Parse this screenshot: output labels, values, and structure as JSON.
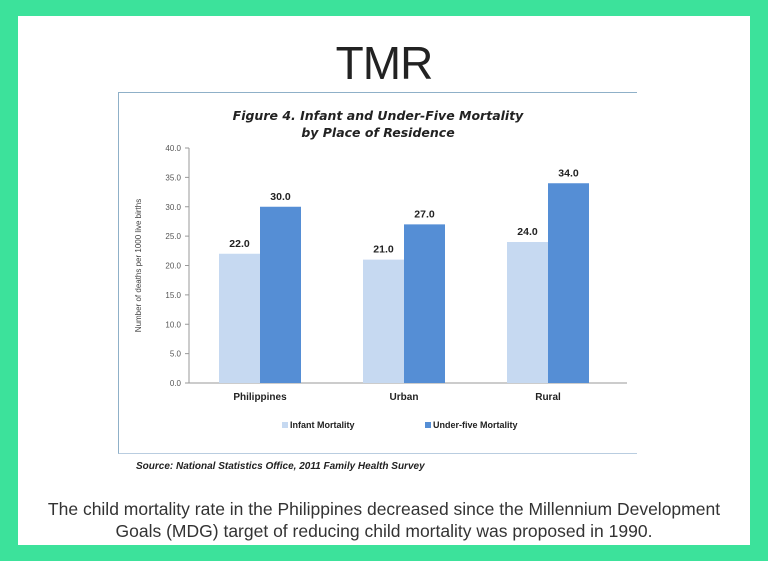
{
  "slide": {
    "title": "TMR",
    "source": "Source: National Statistics Office, 2011 Family Health Survey",
    "caption_line1": "The child mortality rate in the Philippines decreased since the Millennium Development",
    "caption_line2": "Goals (MDG) target of reducing child mortality was proposed in 1990."
  },
  "colors": {
    "background": "#3ce29b",
    "infant": "#c6d9f1",
    "under_five": "#558ed5"
  },
  "chart_data": {
    "type": "bar",
    "title": "Figure 4. Infant and Under-Five Mortality",
    "subtitle": "by Place of Residence",
    "xlabel": "",
    "ylabel": "Number of deaths per 1000 live births",
    "ylim": [
      0,
      40
    ],
    "yticks": [
      "0.0",
      "5.0",
      "10.0",
      "15.0",
      "20.0",
      "25.0",
      "30.0",
      "35.0",
      "40.0"
    ],
    "categories": [
      "Philippines",
      "Urban",
      "Rural"
    ],
    "series": [
      {
        "name": "Infant Mortality",
        "values": [
          22.0,
          21.0,
          24.0
        ],
        "labels": [
          "22.0",
          "21.0",
          "24.0"
        ]
      },
      {
        "name": "Under-five Mortality",
        "values": [
          30.0,
          27.0,
          34.0
        ],
        "labels": [
          "30.0",
          "27.0",
          "34.0"
        ]
      }
    ],
    "grid": false,
    "legend": "bottom"
  }
}
